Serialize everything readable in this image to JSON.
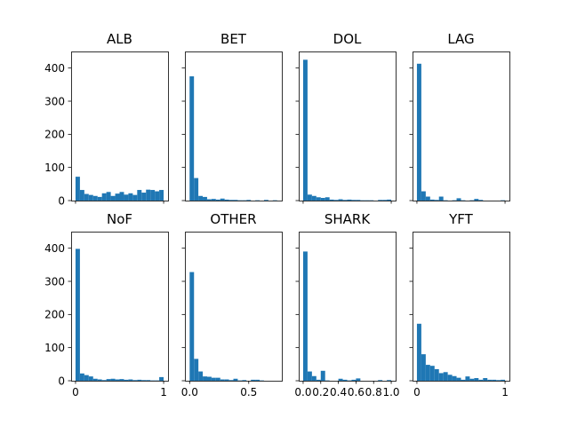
{
  "style": {
    "bar_color": "#1f77b4",
    "axis_color": "#000000",
    "background": "#ffffff"
  },
  "shared": {
    "ylim": [
      0,
      450
    ],
    "yticks": [
      "0",
      "100",
      "200",
      "300",
      "400"
    ]
  },
  "chart_data": [
    {
      "type": "bar",
      "title": "ALB",
      "xlim": [
        -0.05,
        1.05
      ],
      "bins": [
        [
          0.0,
          0.05,
          72
        ],
        [
          0.05,
          0.1,
          32
        ],
        [
          0.1,
          0.15,
          20
        ],
        [
          0.15,
          0.2,
          17
        ],
        [
          0.2,
          0.25,
          14
        ],
        [
          0.25,
          0.3,
          11
        ],
        [
          0.3,
          0.35,
          22
        ],
        [
          0.35,
          0.4,
          26
        ],
        [
          0.4,
          0.45,
          14
        ],
        [
          0.45,
          0.5,
          21
        ],
        [
          0.5,
          0.55,
          26
        ],
        [
          0.55,
          0.6,
          18
        ],
        [
          0.6,
          0.65,
          22
        ],
        [
          0.65,
          0.7,
          17
        ],
        [
          0.7,
          0.75,
          32
        ],
        [
          0.75,
          0.8,
          24
        ],
        [
          0.8,
          0.85,
          33
        ],
        [
          0.85,
          0.9,
          32
        ],
        [
          0.9,
          0.95,
          28
        ],
        [
          0.95,
          1.0,
          32
        ]
      ],
      "xticks": []
    },
    {
      "type": "bar",
      "title": "BET",
      "xlim": [
        -0.04,
        0.79
      ],
      "bins": [
        [
          0.0,
          0.0375,
          375
        ],
        [
          0.0375,
          0.075,
          68
        ],
        [
          0.075,
          0.1125,
          14
        ],
        [
          0.1125,
          0.15,
          11
        ],
        [
          0.15,
          0.1875,
          4
        ],
        [
          0.1875,
          0.225,
          5
        ],
        [
          0.225,
          0.2625,
          3
        ],
        [
          0.2625,
          0.3,
          6
        ],
        [
          0.3,
          0.3375,
          3
        ],
        [
          0.3375,
          0.375,
          2
        ],
        [
          0.375,
          0.4125,
          2
        ],
        [
          0.4125,
          0.45,
          1
        ],
        [
          0.45,
          0.4875,
          1
        ],
        [
          0.4875,
          0.525,
          2
        ],
        [
          0.525,
          0.5625,
          0
        ],
        [
          0.5625,
          0.6,
          1
        ],
        [
          0.6,
          0.6375,
          0
        ],
        [
          0.6375,
          0.675,
          2
        ],
        [
          0.675,
          0.7125,
          0
        ],
        [
          0.7125,
          0.75,
          1
        ]
      ],
      "xticks": []
    },
    {
      "type": "bar",
      "title": "DOL",
      "xlim": [
        -0.05,
        1.05
      ],
      "bins": [
        [
          0.0,
          0.05,
          425
        ],
        [
          0.05,
          0.1,
          18
        ],
        [
          0.1,
          0.15,
          14
        ],
        [
          0.15,
          0.2,
          10
        ],
        [
          0.2,
          0.25,
          8
        ],
        [
          0.25,
          0.3,
          10
        ],
        [
          0.3,
          0.35,
          3
        ],
        [
          0.35,
          0.4,
          2
        ],
        [
          0.4,
          0.45,
          4
        ],
        [
          0.45,
          0.5,
          2
        ],
        [
          0.5,
          0.55,
          3
        ],
        [
          0.55,
          0.6,
          2
        ],
        [
          0.6,
          0.65,
          2
        ],
        [
          0.65,
          0.7,
          1
        ],
        [
          0.7,
          0.75,
          1
        ],
        [
          0.75,
          0.8,
          1
        ],
        [
          0.8,
          0.85,
          0
        ],
        [
          0.85,
          0.9,
          2
        ],
        [
          0.9,
          0.95,
          2
        ],
        [
          0.95,
          1.0,
          3
        ]
      ],
      "xticks": []
    },
    {
      "type": "bar",
      "title": "LAG",
      "xlim": [
        -0.05,
        1.05
      ],
      "bins": [
        [
          0.0,
          0.05,
          413
        ],
        [
          0.05,
          0.1,
          28
        ],
        [
          0.1,
          0.15,
          12
        ],
        [
          0.15,
          0.2,
          3
        ],
        [
          0.2,
          0.25,
          2
        ],
        [
          0.25,
          0.3,
          12
        ],
        [
          0.3,
          0.35,
          1
        ],
        [
          0.35,
          0.4,
          0
        ],
        [
          0.4,
          0.45,
          1
        ],
        [
          0.45,
          0.5,
          7
        ],
        [
          0.5,
          0.55,
          1
        ],
        [
          0.55,
          0.6,
          0
        ],
        [
          0.6,
          0.65,
          1
        ],
        [
          0.65,
          0.7,
          5
        ],
        [
          0.7,
          0.75,
          2
        ],
        [
          0.75,
          0.8,
          0
        ],
        [
          0.8,
          0.85,
          0
        ],
        [
          0.85,
          0.9,
          0
        ],
        [
          0.9,
          0.95,
          0
        ],
        [
          0.95,
          1.0,
          1
        ]
      ],
      "xticks": []
    },
    {
      "type": "bar",
      "title": "NoF",
      "xlim": [
        -0.05,
        1.05
      ],
      "bins": [
        [
          0.0,
          0.05,
          398
        ],
        [
          0.05,
          0.1,
          22
        ],
        [
          0.1,
          0.15,
          17
        ],
        [
          0.15,
          0.2,
          13
        ],
        [
          0.2,
          0.25,
          6
        ],
        [
          0.25,
          0.3,
          4
        ],
        [
          0.3,
          0.35,
          2
        ],
        [
          0.35,
          0.4,
          5
        ],
        [
          0.4,
          0.45,
          6
        ],
        [
          0.45,
          0.5,
          4
        ],
        [
          0.5,
          0.55,
          5
        ],
        [
          0.55,
          0.6,
          3
        ],
        [
          0.6,
          0.65,
          4
        ],
        [
          0.65,
          0.7,
          2
        ],
        [
          0.7,
          0.75,
          3
        ],
        [
          0.75,
          0.8,
          2
        ],
        [
          0.8,
          0.85,
          2
        ],
        [
          0.85,
          0.9,
          1
        ],
        [
          0.9,
          0.95,
          1
        ],
        [
          0.95,
          1.0,
          11
        ]
      ],
      "xticks": [
        "0",
        "1"
      ]
    },
    {
      "type": "bar",
      "title": "OTHER",
      "xlim": [
        -0.04,
        0.78
      ],
      "bins": [
        [
          0.0,
          0.037,
          328
        ],
        [
          0.037,
          0.074,
          66
        ],
        [
          0.074,
          0.111,
          28
        ],
        [
          0.111,
          0.148,
          13
        ],
        [
          0.148,
          0.185,
          12
        ],
        [
          0.185,
          0.222,
          9
        ],
        [
          0.222,
          0.259,
          9
        ],
        [
          0.259,
          0.296,
          4
        ],
        [
          0.296,
          0.333,
          4
        ],
        [
          0.333,
          0.37,
          2
        ],
        [
          0.37,
          0.407,
          6
        ],
        [
          0.407,
          0.444,
          1
        ],
        [
          0.444,
          0.481,
          2
        ],
        [
          0.481,
          0.518,
          0
        ],
        [
          0.518,
          0.555,
          3
        ],
        [
          0.555,
          0.592,
          3
        ],
        [
          0.592,
          0.629,
          1
        ],
        [
          0.629,
          0.666,
          0
        ],
        [
          0.666,
          0.703,
          0
        ],
        [
          0.703,
          0.74,
          0
        ]
      ],
      "xticks": [
        "0.0",
        "0.5"
      ]
    },
    {
      "type": "bar",
      "title": "SHARK",
      "xlim": [
        -0.05,
        1.05
      ],
      "bins": [
        [
          0.0,
          0.05,
          390
        ],
        [
          0.05,
          0.1,
          28
        ],
        [
          0.1,
          0.15,
          14
        ],
        [
          0.15,
          0.2,
          3
        ],
        [
          0.2,
          0.25,
          30
        ],
        [
          0.25,
          0.3,
          1
        ],
        [
          0.3,
          0.35,
          0
        ],
        [
          0.35,
          0.4,
          0
        ],
        [
          0.4,
          0.45,
          6
        ],
        [
          0.45,
          0.5,
          3
        ],
        [
          0.5,
          0.55,
          1
        ],
        [
          0.55,
          0.6,
          3
        ],
        [
          0.6,
          0.65,
          7
        ],
        [
          0.65,
          0.7,
          0
        ],
        [
          0.7,
          0.75,
          0
        ],
        [
          0.75,
          0.8,
          0
        ],
        [
          0.8,
          0.85,
          0
        ],
        [
          0.85,
          0.9,
          2
        ],
        [
          0.9,
          0.95,
          0
        ],
        [
          0.95,
          1.0,
          2
        ]
      ],
      "xticks": [
        "0.0",
        "0.2",
        "0.4",
        "0.6",
        "0.8",
        "1.0"
      ]
    },
    {
      "type": "bar",
      "title": "YFT",
      "xlim": [
        -0.05,
        1.05
      ],
      "bins": [
        [
          0.0,
          0.05,
          172
        ],
        [
          0.05,
          0.1,
          80
        ],
        [
          0.1,
          0.15,
          48
        ],
        [
          0.15,
          0.2,
          45
        ],
        [
          0.2,
          0.25,
          35
        ],
        [
          0.25,
          0.3,
          23
        ],
        [
          0.3,
          0.35,
          26
        ],
        [
          0.35,
          0.4,
          18
        ],
        [
          0.4,
          0.45,
          14
        ],
        [
          0.45,
          0.5,
          9
        ],
        [
          0.5,
          0.55,
          3
        ],
        [
          0.55,
          0.6,
          13
        ],
        [
          0.6,
          0.65,
          6
        ],
        [
          0.65,
          0.7,
          8
        ],
        [
          0.7,
          0.75,
          3
        ],
        [
          0.75,
          0.8,
          8
        ],
        [
          0.8,
          0.85,
          3
        ],
        [
          0.85,
          0.9,
          3
        ],
        [
          0.9,
          0.95,
          2
        ],
        [
          0.95,
          1.0,
          3
        ]
      ],
      "xticks": [
        "0",
        "1"
      ]
    }
  ]
}
